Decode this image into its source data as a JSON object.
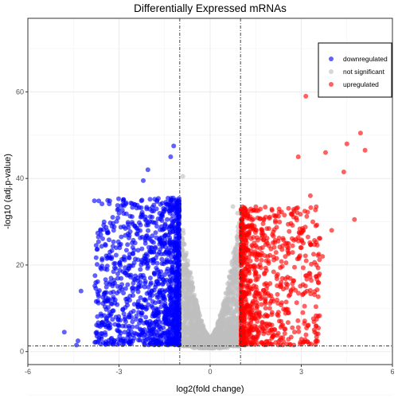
{
  "chart_data": {
    "type": "scatter",
    "title": "Differentially Expressed mRNAs",
    "xlabel": "log2(fold change)",
    "ylabel": "-log10 (adj.p-value)",
    "xlim": [
      -6,
      6
    ],
    "ylim": [
      -3,
      77
    ],
    "xticks": [
      -6,
      -3,
      0,
      3,
      6
    ],
    "yticks": [
      0,
      20,
      40,
      60
    ],
    "grid": true,
    "fc_threshold_lines": [
      -1,
      1
    ],
    "pvalue_threshold_line": 1.3,
    "legend_position": "top-right",
    "series": [
      {
        "name": "downregulated",
        "color": "#0000ff"
      },
      {
        "name": "not significant",
        "color": "#bebebe"
      },
      {
        "name": "upregulated",
        "color": "#ff0000"
      }
    ],
    "highlighted_points": [
      {
        "series": "upregulated",
        "x": 3.15,
        "y": 59.0
      },
      {
        "series": "upregulated",
        "x": 4.95,
        "y": 50.5
      },
      {
        "series": "upregulated",
        "x": 5.1,
        "y": 46.5
      },
      {
        "series": "upregulated",
        "x": 4.5,
        "y": 48.0
      },
      {
        "series": "upregulated",
        "x": 3.8,
        "y": 46.0
      },
      {
        "series": "upregulated",
        "x": 4.4,
        "y": 41.5
      },
      {
        "series": "upregulated",
        "x": 4.75,
        "y": 30.5
      },
      {
        "series": "upregulated",
        "x": 2.9,
        "y": 45.0
      },
      {
        "series": "upregulated",
        "x": 3.3,
        "y": 36.0
      },
      {
        "series": "upregulated",
        "x": 3.5,
        "y": 2.5
      },
      {
        "series": "upregulated",
        "x": 4.0,
        "y": 28.0
      },
      {
        "series": "upregulated",
        "x": 3.7,
        "y": 22.0
      },
      {
        "series": "upregulated",
        "x": 3.0,
        "y": 24.0
      },
      {
        "series": "downregulated",
        "x": -1.2,
        "y": 47.5
      },
      {
        "series": "downregulated",
        "x": -1.3,
        "y": 45.0
      },
      {
        "series": "downregulated",
        "x": -2.05,
        "y": 42.0
      },
      {
        "series": "downregulated",
        "x": -2.2,
        "y": 39.5
      },
      {
        "series": "downregulated",
        "x": -4.25,
        "y": 14.0
      },
      {
        "series": "downregulated",
        "x": -4.35,
        "y": 2.5
      },
      {
        "series": "downregulated",
        "x": -4.4,
        "y": 1.5
      },
      {
        "series": "downregulated",
        "x": -4.8,
        "y": 4.5
      },
      {
        "series": "downregulated",
        "x": -3.6,
        "y": 27.0
      },
      {
        "series": "downregulated",
        "x": -3.0,
        "y": 32.0
      },
      {
        "series": "not significant",
        "x": -0.9,
        "y": 40.5
      },
      {
        "series": "not significant",
        "x": 0.75,
        "y": 33.5
      },
      {
        "series": "not significant",
        "x": 0.9,
        "y": 32.0
      }
    ]
  }
}
